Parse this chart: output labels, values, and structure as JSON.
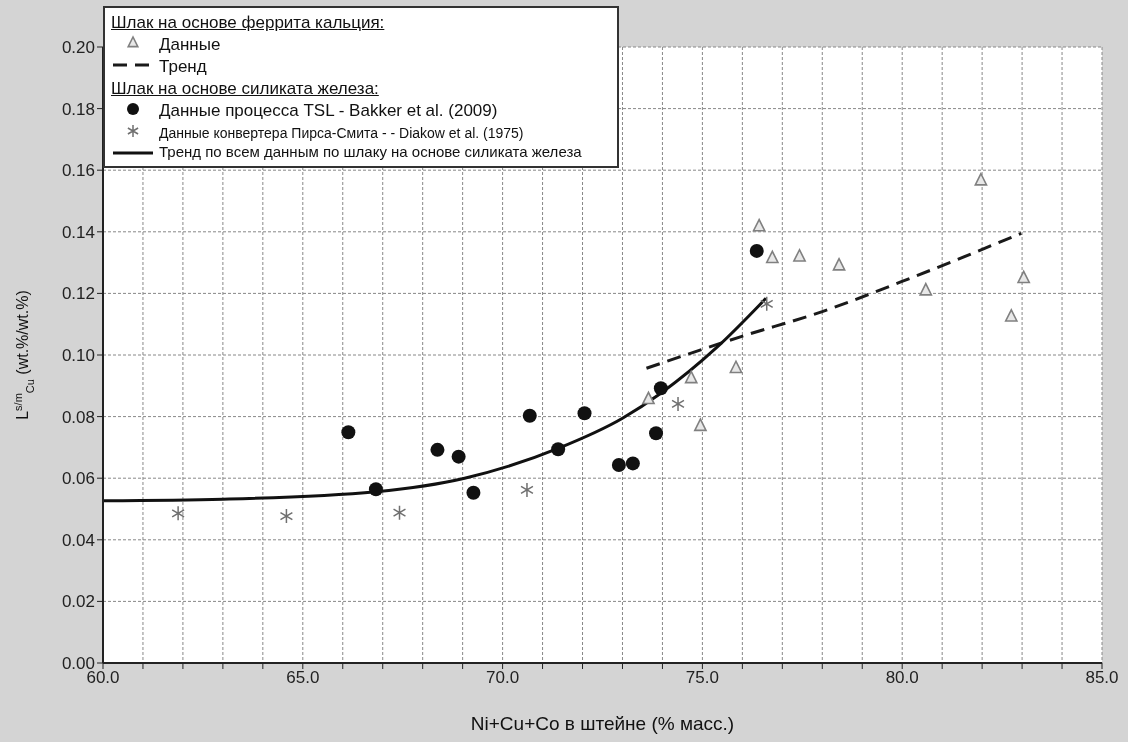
{
  "chart_data": {
    "type": "scatter",
    "xlabel": "Ni+Cu+Co в штейне (% масс.)",
    "ylabel": "L$^{s/m}$$_{Cu}$ (wt.%/wt.%)",
    "annotations": [
      "Шлак на основе феррита кальция:",
      "Шлак на основе силиката железа:"
    ],
    "xlim": [
      60,
      85
    ],
    "ylim": [
      0,
      0.2
    ],
    "xticks": [
      {
        "value": 60,
        "label": "60.0"
      },
      {
        "value": 61,
        "label": null
      },
      {
        "value": 62,
        "label": null
      },
      {
        "value": 63,
        "label": null
      },
      {
        "value": 64,
        "label": null
      },
      {
        "value": 65,
        "label": "65.0"
      },
      {
        "value": 66,
        "label": null
      },
      {
        "value": 67,
        "label": null
      },
      {
        "value": 68,
        "label": null
      },
      {
        "value": 69,
        "label": null
      },
      {
        "value": 70,
        "label": "70.0"
      },
      {
        "value": 71,
        "label": null
      },
      {
        "value": 72,
        "label": null
      },
      {
        "value": 73,
        "label": null
      },
      {
        "value": 74,
        "label": null
      },
      {
        "value": 75,
        "label": "75.0"
      },
      {
        "value": 76,
        "label": null
      },
      {
        "value": 77,
        "label": null
      },
      {
        "value": 78,
        "label": null
      },
      {
        "value": 79,
        "label": null
      },
      {
        "value": 80,
        "label": "80.0"
      },
      {
        "value": 81,
        "label": null
      },
      {
        "value": 82,
        "label": null
      },
      {
        "value": 83,
        "label": null
      },
      {
        "value": 84,
        "label": null
      },
      {
        "value": 85,
        "label": "85.0"
      }
    ],
    "yticks": [
      {
        "value": 0,
        "label": "0.00"
      },
      {
        "value": 0.02,
        "label": "0.02"
      },
      {
        "value": 0.04,
        "label": "0.04"
      },
      {
        "value": 0.06,
        "label": "0.06"
      },
      {
        "value": 0.08,
        "label": "0.08"
      },
      {
        "value": 0.1,
        "label": "0.10"
      },
      {
        "value": 0.12,
        "label": "0.12"
      },
      {
        "value": 0.14,
        "label": "0.14"
      },
      {
        "value": 0.16,
        "label": "0.16"
      },
      {
        "value": 0.18,
        "label": "0.18"
      },
      {
        "value": 0.2,
        "label": "0.20"
      }
    ],
    "grid": true,
    "legend": "top left",
    "series": [
      {
        "name": "Данные",
        "marker": "triangle",
        "color": "#808080",
        "x": [
          73.65,
          74.72,
          74.95,
          75.84,
          76.42,
          76.75,
          77.43,
          78.42,
          80.59,
          81.97,
          82.73,
          83.04
        ],
        "values": [
          0.0856,
          0.0924,
          0.0769,
          0.0957,
          0.1417,
          0.1314,
          0.1319,
          0.129,
          0.1209,
          0.1566,
          0.1124,
          0.1249
        ]
      },
      {
        "name": "Тренд",
        "type": "line",
        "line_style": "dashed",
        "marker": "none",
        "color": "#1a1a1a",
        "x": [
          73.6,
          75.95,
          78.0,
          79.98,
          82.98
        ],
        "values": [
          0.0957,
          0.1059,
          0.1141,
          0.1238,
          0.1395
        ]
      },
      {
        "name": "Данные процесса TSL - Bakker et al. (2009)",
        "marker": "circle",
        "color": "#111111",
        "x": [
          66.14,
          66.83,
          68.37,
          68.9,
          69.27,
          70.68,
          71.39,
          72.05,
          72.91,
          73.26,
          73.84,
          73.96,
          76.36
        ],
        "values": [
          0.0749,
          0.0564,
          0.0692,
          0.067,
          0.0553,
          0.0803,
          0.0694,
          0.0811,
          0.0643,
          0.0648,
          0.0746,
          0.0892,
          0.1338
        ]
      },
      {
        "name": "Данные конвертера Пирса-Смита - - Diakow et al. (1975)",
        "marker": "cross",
        "color": "#707070",
        "x": [
          61.88,
          64.59,
          67.42,
          70.61,
          74.39,
          76.61
        ],
        "values": [
          0.0486,
          0.0477,
          0.0488,
          0.0562,
          0.0841,
          0.1166
        ]
      },
      {
        "name": "Тренд по всем данным по шлаку на основе силиката железа",
        "type": "line",
        "line_style": "solid",
        "marker": "none",
        "color": "#111111",
        "x": [
          60,
          63,
          66.83,
          69.05,
          71.39,
          72.99,
          73.96,
          75.38,
          76.59
        ],
        "values": [
          0.0527,
          0.0532,
          0.0556,
          0.06,
          0.0697,
          0.0794,
          0.0876,
          0.1027,
          0.1184
        ]
      }
    ]
  }
}
